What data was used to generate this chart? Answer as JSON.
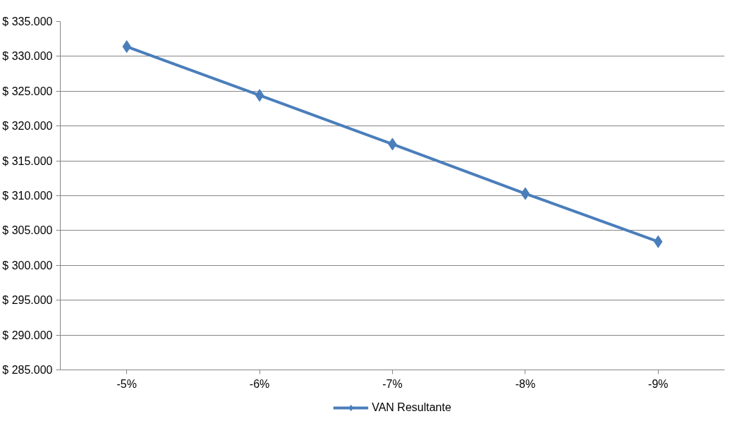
{
  "chart_data": {
    "type": "line",
    "categories": [
      "-5%",
      "-6%",
      "-7%",
      "-8%",
      "-9%"
    ],
    "series": [
      {
        "name": "VAN Resultante",
        "color": "#4a7ebb",
        "values": [
          331400,
          324400,
          317400,
          310300,
          303400
        ]
      }
    ],
    "ylim": [
      285000,
      335000
    ],
    "yticks": [
      {
        "value": 285000,
        "label": "$ 285.000"
      },
      {
        "value": 290000,
        "label": "$ 290.000"
      },
      {
        "value": 295000,
        "label": "$ 295.000"
      },
      {
        "value": 300000,
        "label": "$ 300.000"
      },
      {
        "value": 305000,
        "label": "$ 305.000"
      },
      {
        "value": 310000,
        "label": "$ 310.000"
      },
      {
        "value": 315000,
        "label": "$ 315.000"
      },
      {
        "value": 320000,
        "label": "$ 320.000"
      },
      {
        "value": 325000,
        "label": "$ 325.000"
      },
      {
        "value": 330000,
        "label": "$ 330.000"
      },
      {
        "value": 335000,
        "label": "$ 335.000"
      }
    ],
    "grid": "y",
    "legend": "bottom",
    "marker": "diamond",
    "line_style": "solid"
  }
}
